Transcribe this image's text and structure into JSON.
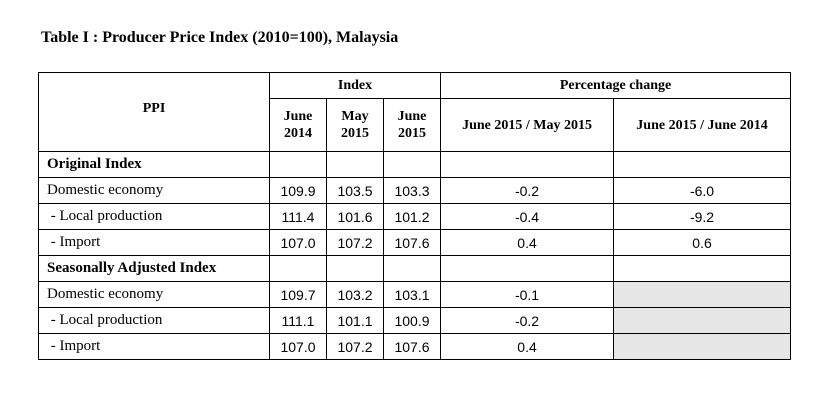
{
  "title": "Table I : Producer Price Index (2010=100), Malaysia",
  "header": {
    "ppi": "PPI",
    "index": "Index",
    "pct_change": "Percentage change",
    "col_june_2014": [
      "June",
      "2014"
    ],
    "col_may_2015": [
      "May",
      "2015"
    ],
    "col_june_2015": [
      "June",
      "2015"
    ],
    "col_mom": "June 2015 / May 2015",
    "col_yoy": "June 2015 / June 2014"
  },
  "sections": [
    {
      "heading": "Original Index",
      "rows": [
        {
          "label": "Domestic economy",
          "jun14": "109.9",
          "may15": "103.5",
          "jun15": "103.3",
          "mom": "-0.2",
          "yoy": "-6.0"
        },
        {
          "label": " - Local production",
          "jun14": "111.4",
          "may15": "101.6",
          "jun15": "101.2",
          "mom": "-0.4",
          "yoy": "-9.2"
        },
        {
          "label": " - Import",
          "jun14": "107.0",
          "may15": "107.2",
          "jun15": "107.6",
          "mom": "0.4",
          "yoy": "0.6"
        }
      ]
    },
    {
      "heading": "Seasonally Adjusted Index",
      "rows": [
        {
          "label": "Domestic economy",
          "jun14": "109.7",
          "may15": "103.2",
          "jun15": "103.1",
          "mom": "-0.1",
          "yoy": ""
        },
        {
          "label": " - Local production",
          "jun14": "111.1",
          "may15": "101.1",
          "jun15": "100.9",
          "mom": "-0.2",
          "yoy": ""
        },
        {
          "label": " - Import",
          "jun14": "107.0",
          "may15": "107.2",
          "jun15": "107.6",
          "mom": "0.4",
          "yoy": ""
        }
      ]
    }
  ],
  "colors": {
    "shaded_cell": "#e6e6e6",
    "border": "#000000"
  }
}
